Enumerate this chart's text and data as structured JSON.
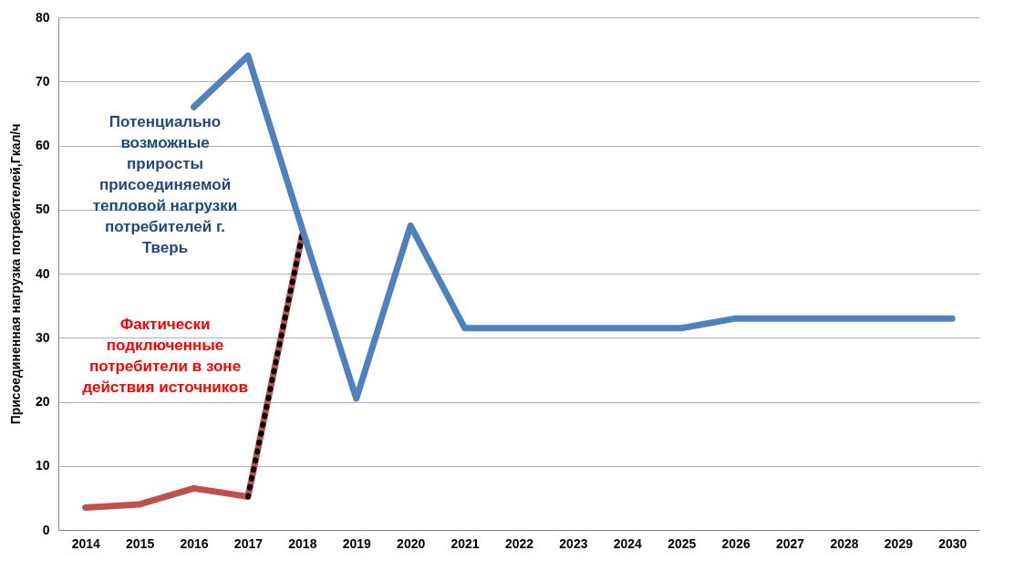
{
  "chart_data": {
    "type": "line",
    "ylabel": "Присоединенная нагрузка потребителей,Гкал/ч",
    "categories": [
      "2014",
      "2015",
      "2016",
      "2017",
      "2018",
      "2019",
      "2020",
      "2021",
      "2022",
      "2023",
      "2024",
      "2025",
      "2026",
      "2027",
      "2028",
      "2029",
      "2030"
    ],
    "series": [
      {
        "name": "Фактически подключенные потребители в зоне действия источников",
        "color": "#c0504d",
        "values": [
          3.5,
          4,
          6.5,
          5.2,
          46,
          null,
          null,
          null,
          null,
          null,
          null,
          null,
          null,
          null,
          null,
          null,
          null
        ]
      },
      {
        "color": "#000000",
        "line_style": "dotted",
        "values": [
          null,
          null,
          null,
          5.2,
          46,
          null,
          null,
          null,
          null,
          null,
          null,
          null,
          null,
          null,
          null,
          null,
          null
        ]
      },
      {
        "name": "Потенциально возможные приросты присоединяемой тепловой нагрузки потребителей г. Тверь",
        "color": "#4f81bd",
        "values": [
          null,
          null,
          66,
          74,
          47,
          20.5,
          47.5,
          31.5,
          31.5,
          31.5,
          31.5,
          31.5,
          33,
          33,
          33,
          33,
          33
        ]
      }
    ],
    "ylim": [
      0,
      80
    ],
    "yticks": [
      0,
      10,
      20,
      30,
      40,
      50,
      60,
      70,
      80
    ],
    "grid": "y"
  }
}
